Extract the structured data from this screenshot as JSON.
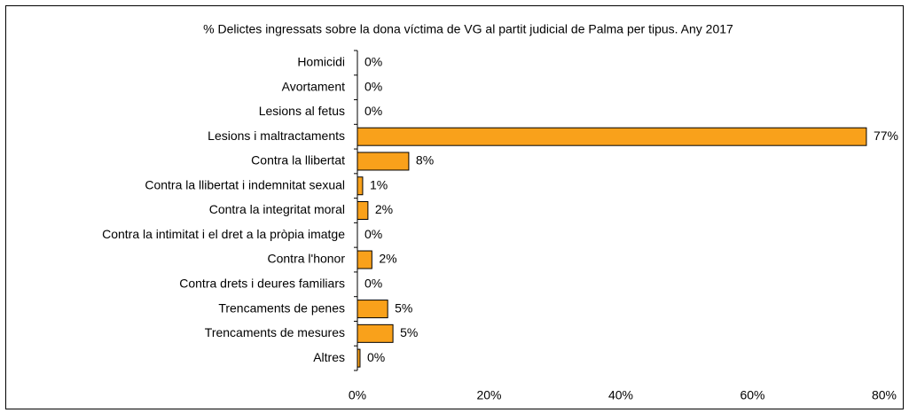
{
  "chart_data": {
    "type": "barh",
    "title": "% Delictes ingressats sobre la dona víctima de VG  al partit judicial de Palma per tipus. Any 2017",
    "categories": [
      "Homicidi",
      "Avortament",
      "Lesions al fetus",
      "Lesions i maltractaments",
      "Contra la llibertat",
      "Contra la llibertat i indemnitat sexual",
      "Contra la integritat moral",
      "Contra la intimitat i el dret a la pròpia imatge",
      "Contra l'honor",
      "Contra drets i deures familiars",
      "Trencaments de penes",
      "Trencaments de mesures",
      "Altres"
    ],
    "values": [
      0,
      0,
      0,
      77.3,
      7.8,
      0.8,
      1.6,
      0,
      2.2,
      0,
      4.6,
      5.4,
      0.4
    ],
    "value_labels": [
      "0%",
      "0%",
      "0%",
      "77%",
      "8%",
      "1%",
      "2%",
      "0%",
      "2%",
      "0%",
      "5%",
      "5%",
      "0%"
    ],
    "color": "#f9a11b",
    "xlim": [
      0,
      80
    ],
    "xticks": [
      {
        "value": 0,
        "label": "0%"
      },
      {
        "value": 20,
        "label": "20%"
      },
      {
        "value": 40,
        "label": "40%"
      },
      {
        "value": 60,
        "label": "60%"
      },
      {
        "value": 80,
        "label": "80%"
      }
    ]
  }
}
